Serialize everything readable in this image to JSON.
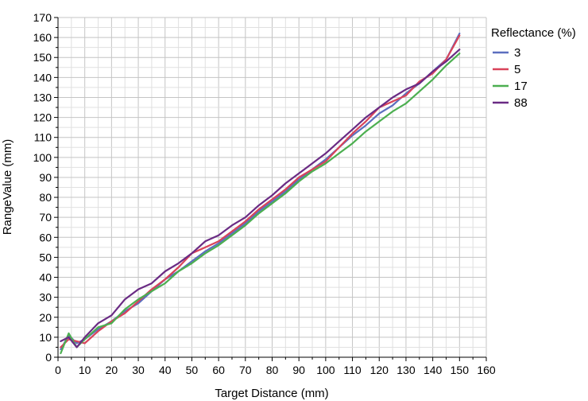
{
  "chart_data": {
    "type": "line",
    "xlabel": "Target Distance (mm)",
    "ylabel": "RangeValue (mm)",
    "xlim": [
      0,
      160
    ],
    "ylim": [
      0,
      170
    ],
    "xticks": [
      "0",
      "10",
      "20",
      "30",
      "40",
      "50",
      "60",
      "70",
      "80",
      "90",
      "100",
      "110",
      "120",
      "130",
      "140",
      "150",
      "160"
    ],
    "yticks": [
      "0",
      "10",
      "20",
      "30",
      "40",
      "50",
      "60",
      "70",
      "80",
      "90",
      "100",
      "110",
      "120",
      "130",
      "140",
      "150",
      "160",
      "170"
    ],
    "grid": true,
    "legend": {
      "title": "Reflectance (%)",
      "position": "right"
    },
    "x": [
      1,
      4,
      7,
      10,
      15,
      20,
      25,
      30,
      35,
      40,
      45,
      50,
      55,
      60,
      65,
      70,
      75,
      80,
      85,
      90,
      95,
      100,
      105,
      110,
      115,
      120,
      125,
      130,
      135,
      140,
      145,
      150
    ],
    "series": [
      {
        "name": "3",
        "color": "#5b6fbf",
        "values": [
          4,
          11,
          7,
          9,
          14,
          18,
          23,
          27,
          33,
          39,
          43,
          48,
          53,
          57,
          62,
          67,
          73,
          78,
          83,
          89,
          94,
          99,
          105,
          111,
          116,
          122,
          126,
          132,
          137,
          143,
          149,
          162
        ]
      },
      {
        "name": "5",
        "color": "#d9435a",
        "values": [
          5,
          9,
          8,
          7,
          13,
          18,
          22,
          28,
          34,
          39,
          45,
          52,
          55,
          58,
          63,
          68,
          74,
          79,
          84,
          90,
          94,
          98,
          105,
          112,
          118,
          125,
          128,
          131,
          138,
          142,
          149,
          161
        ]
      },
      {
        "name": "17",
        "color": "#4caf50",
        "values": [
          2,
          12,
          5,
          9,
          15,
          17,
          24,
          29,
          33,
          37,
          43,
          47,
          52,
          56,
          61,
          66,
          72,
          77,
          82,
          88,
          93,
          97,
          102,
          107,
          113,
          118,
          123,
          127,
          133,
          139,
          146,
          152
        ]
      },
      {
        "name": "88",
        "color": "#6a2b84",
        "values": [
          8,
          10,
          5,
          10,
          17,
          21,
          29,
          34,
          37,
          43,
          47,
          52,
          58,
          61,
          66,
          70,
          76,
          81,
          87,
          92,
          97,
          102,
          108,
          114,
          120,
          125,
          130,
          134,
          137,
          143,
          148,
          154
        ]
      }
    ]
  }
}
